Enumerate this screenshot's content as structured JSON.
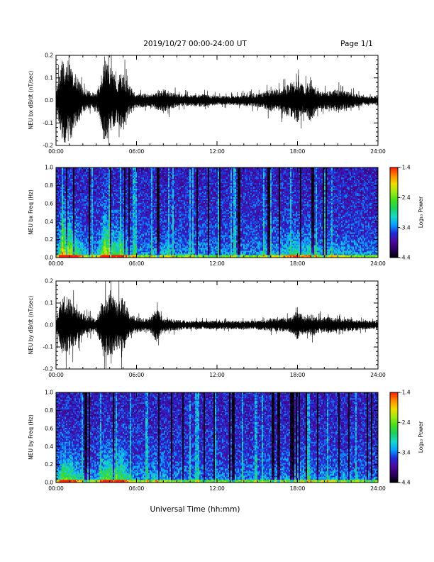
{
  "header": {
    "title": "2019/10/27  00:00-24:00 UT",
    "page": "Page 1/1"
  },
  "footer": {
    "xlabel": "Universal Time (hh:mm)"
  },
  "colors": {
    "waveform": "#000000",
    "colorbar_stops": [
      "#000000",
      "#2a0060",
      "#4b0aa0",
      "#1f2cd8",
      "#0aa0ff",
      "#19d8c8",
      "#1fd060",
      "#46dc20",
      "#a0e814",
      "#f0dc00",
      "#ff8a00",
      "#ff1a00"
    ]
  },
  "chart_data": [
    {
      "type": "line",
      "panel": "bx-waveform",
      "ylabel": "NEU bx dB/dt (nT/sec)",
      "xlim": [
        0,
        24
      ],
      "ylim": [
        -0.2,
        0.2
      ],
      "x_tick_labels": [
        "00:00",
        "06:00",
        "12:00",
        "18:00",
        "24:00"
      ],
      "y_ticks": [
        -0.2,
        -0.1,
        0.0,
        0.1,
        0.2
      ],
      "y_tick_labels": [
        "-0.2",
        "-0.1",
        "0.0",
        "0.1",
        "0.2"
      ],
      "envelope": {
        "x_hours": [
          0,
          0.5,
          1.0,
          1.5,
          2.0,
          2.5,
          3.0,
          3.3,
          3.6,
          4.0,
          4.5,
          5.0,
          5.5,
          6.0,
          7.0,
          8.0,
          9.0,
          10.0,
          11.0,
          12.0,
          13.0,
          14.0,
          15.0,
          15.5,
          16.0,
          16.5,
          17.0,
          17.5,
          18.0,
          18.5,
          19.0,
          19.5,
          20.0,
          21.0,
          22.0,
          23.0,
          24.0
        ],
        "amplitude": [
          0.03,
          0.2,
          0.19,
          0.12,
          0.06,
          0.04,
          0.03,
          0.09,
          0.2,
          0.15,
          0.1,
          0.13,
          0.06,
          0.035,
          0.03,
          0.05,
          0.03,
          0.025,
          0.03,
          0.02,
          0.02,
          0.025,
          0.03,
          0.04,
          0.05,
          0.05,
          0.06,
          0.08,
          0.1,
          0.06,
          0.1,
          0.04,
          0.04,
          0.05,
          0.035,
          0.02,
          0.02
        ]
      }
    },
    {
      "type": "heatmap",
      "panel": "bx-spectrogram",
      "ylabel": "NEU bx Freq (Hz)",
      "xlim": [
        0,
        24
      ],
      "ylim": [
        0.0,
        1.0
      ],
      "x_tick_labels": [
        "00:00",
        "06:00",
        "12:00",
        "18:00",
        "24:00"
      ],
      "y_ticks": [
        0.0,
        0.2,
        0.4,
        0.6,
        0.8,
        1.0
      ],
      "y_tick_labels": [
        "0.0",
        "0.2",
        "0.4",
        "0.6",
        "0.8",
        "1.0"
      ],
      "colorbar": {
        "label": "Log₁₀ Power",
        "range": [
          -4.4,
          -1.4
        ],
        "tick_values": [
          -1.4,
          -2.4,
          -3.4,
          -4.4
        ],
        "tick_labels": [
          "-1.4",
          "-2.4",
          "-3.4",
          "-4.4"
        ]
      }
    },
    {
      "type": "line",
      "panel": "by-waveform",
      "ylabel": "NEU by dB/dt (nT/sec)",
      "xlim": [
        0,
        24
      ],
      "ylim": [
        -0.2,
        0.2
      ],
      "x_tick_labels": [
        "00:00",
        "06:00",
        "12:00",
        "18:00",
        "24:00"
      ],
      "y_ticks": [
        -0.2,
        -0.1,
        0.0,
        0.1,
        0.2
      ],
      "y_tick_labels": [
        "-0.2",
        "-0.1",
        "0.0",
        "0.1",
        "0.2"
      ],
      "envelope": {
        "x_hours": [
          0,
          0.5,
          1.0,
          1.5,
          2.0,
          2.5,
          3.0,
          3.5,
          4.0,
          4.5,
          5.0,
          5.5,
          6.0,
          7.0,
          7.5,
          8.0,
          9.0,
          10.0,
          11.0,
          12.0,
          13.0,
          14.0,
          15.0,
          16.0,
          17.0,
          17.5,
          18.0,
          18.5,
          19.0,
          19.5,
          20.0,
          21.0,
          22.0,
          23.0,
          24.0
        ],
        "amplitude": [
          0.03,
          0.14,
          0.12,
          0.09,
          0.05,
          0.04,
          0.03,
          0.12,
          0.15,
          0.11,
          0.13,
          0.05,
          0.035,
          0.03,
          0.08,
          0.03,
          0.025,
          0.02,
          0.02,
          0.02,
          0.02,
          0.02,
          0.02,
          0.03,
          0.03,
          0.035,
          0.07,
          0.04,
          0.05,
          0.035,
          0.04,
          0.03,
          0.03,
          0.02,
          0.02
        ]
      }
    },
    {
      "type": "heatmap",
      "panel": "by-spectrogram",
      "ylabel": "NEU by Freq (Hz)",
      "xlim": [
        0,
        24
      ],
      "ylim": [
        0.0,
        1.0
      ],
      "x_tick_labels": [
        "00:00",
        "06:00",
        "12:00",
        "18:00",
        "24:00"
      ],
      "y_ticks": [
        0.0,
        0.2,
        0.4,
        0.6,
        0.8,
        1.0
      ],
      "y_tick_labels": [
        "0.0",
        "0.2",
        "0.4",
        "0.6",
        "0.8",
        "1.0"
      ],
      "colorbar": {
        "label": "Log₁₀ Power",
        "range": [
          -4.4,
          -1.4
        ],
        "tick_values": [
          -1.4,
          -2.4,
          -3.4,
          -4.4
        ],
        "tick_labels": [
          "-1.4",
          "-2.4",
          "-3.4",
          "-4.4"
        ]
      }
    }
  ]
}
